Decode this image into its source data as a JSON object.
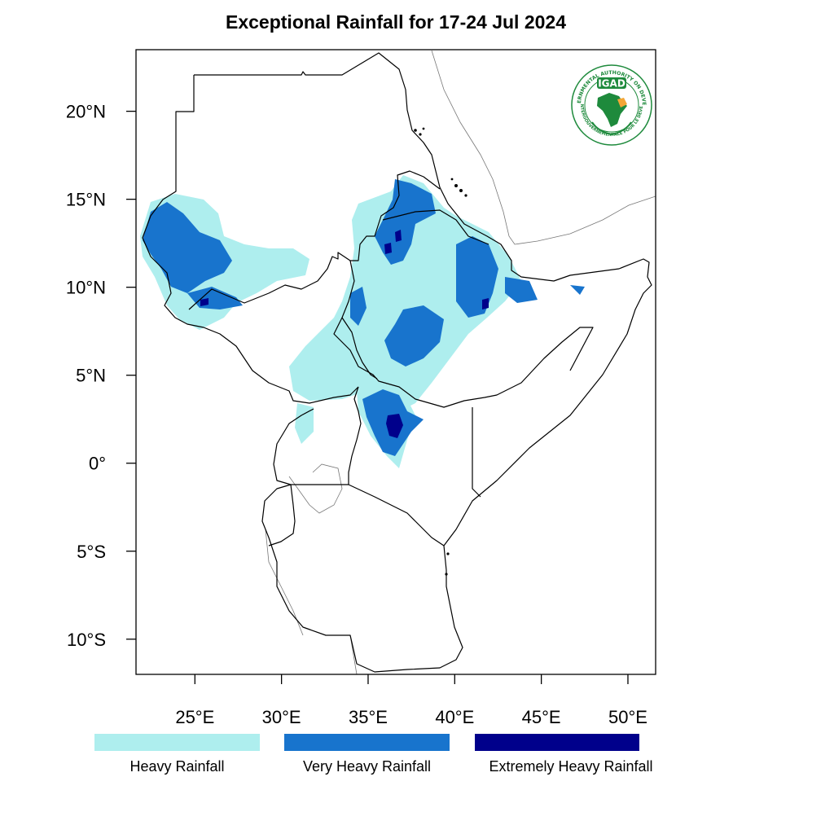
{
  "title": "Exceptional Rainfall for 17-24 Jul 2024",
  "map": {
    "lat_range": [
      -12,
      23.5
    ],
    "lon_range": [
      21.6,
      51.6
    ],
    "lat_ticks": [
      {
        "value": 20,
        "label": "20°N"
      },
      {
        "value": 15,
        "label": "15°N"
      },
      {
        "value": 10,
        "label": "10°N"
      },
      {
        "value": 5,
        "label": "5°N"
      },
      {
        "value": 0,
        "label": "0°"
      },
      {
        "value": -5,
        "label": "5°S"
      },
      {
        "value": -10,
        "label": "10°S"
      }
    ],
    "lon_ticks": [
      {
        "value": 25,
        "label": "25°E"
      },
      {
        "value": 30,
        "label": "30°E"
      },
      {
        "value": 35,
        "label": "35°E"
      },
      {
        "value": 40,
        "label": "40°E"
      },
      {
        "value": 45,
        "label": "45°E"
      },
      {
        "value": 50,
        "label": "50°E"
      }
    ]
  },
  "colors": {
    "heavy": "#aeeeee",
    "very_heavy": "#1874cd",
    "extremely_heavy": "#00008b",
    "border": "#000000",
    "logo_green": "#1e8a3c",
    "logo_orange": "#f4a636"
  },
  "legend": [
    {
      "label": "Heavy Rainfall",
      "color": "#aeeeee"
    },
    {
      "label": "Very Heavy Rainfall",
      "color": "#1874cd"
    },
    {
      "label": "Extremely Heavy Rainfall",
      "color": "#00008b"
    }
  ],
  "logo": {
    "acronym": "IGAD",
    "ring_text_top": "INTERGOVERNMENTAL AUTHORITY ON DEVELOPMENT",
    "ring_text_bottom": "AUTORITÉ INTERGOUVERNEMENTALE POUR LE DÉVELOPPEMENT"
  }
}
